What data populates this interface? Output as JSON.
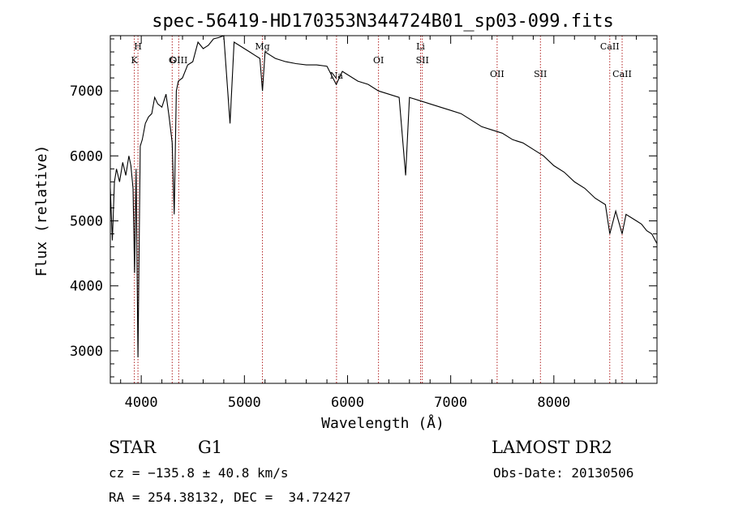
{
  "chart_data": {
    "type": "line",
    "title": "spec-56419-HD170353N344724B01_sp03-099.fits",
    "xlabel": "Wavelength (Å)",
    "ylabel": "Flux (relative)",
    "xlim": [
      3700,
      9000
    ],
    "ylim": [
      2500,
      7850
    ],
    "xticks": [
      4000,
      5000,
      6000,
      7000,
      8000
    ],
    "yticks": [
      3000,
      4000,
      5000,
      6000,
      7000
    ],
    "xtick_labels": [
      "4000",
      "5000",
      "6000",
      "7000",
      "8000"
    ],
    "ytick_labels": [
      "3000",
      "4000",
      "5000",
      "6000",
      "7000"
    ],
    "grid": false,
    "series": [
      {
        "x": [
          3700,
          3720,
          3740,
          3760,
          3790,
          3820,
          3850,
          3880,
          3900,
          3920,
          3935,
          3950,
          3968,
          3990,
          4010,
          4040,
          4070,
          4102,
          4130,
          4160,
          4200,
          4240,
          4270,
          4300,
          4320,
          4340,
          4360,
          4400,
          4450,
          4500,
          4550,
          4600,
          4650,
          4700,
          4750,
          4800,
          4861,
          4900,
          4950,
          5000,
          5050,
          5100,
          5150,
          5175,
          5200,
          5250,
          5300,
          5400,
          5500,
          5600,
          5700,
          5800,
          5890,
          5950,
          6000,
          6100,
          6200,
          6300,
          6400,
          6500,
          6563,
          6600,
          6700,
          6800,
          6900,
          7000,
          7100,
          7200,
          7300,
          7400,
          7500,
          7600,
          7700,
          7800,
          7900,
          8000,
          8100,
          8200,
          8300,
          8400,
          8500,
          8542,
          8600,
          8662,
          8700,
          8750,
          8800,
          8850,
          8900,
          8950,
          9000
        ],
        "y": [
          5500,
          4700,
          5600,
          5800,
          5600,
          5900,
          5700,
          6000,
          5850,
          5500,
          4200,
          5800,
          2900,
          6150,
          6250,
          6500,
          6600,
          6650,
          6900,
          6800,
          6750,
          6950,
          6600,
          6200,
          5100,
          7000,
          7150,
          7200,
          7400,
          7450,
          7750,
          7650,
          7700,
          7800,
          7820,
          7850,
          6500,
          7750,
          7700,
          7650,
          7600,
          7550,
          7500,
          7000,
          7600,
          7550,
          7500,
          7450,
          7420,
          7400,
          7400,
          7380,
          7100,
          7300,
          7250,
          7150,
          7100,
          7000,
          6950,
          6900,
          5700,
          6900,
          6850,
          6800,
          6750,
          6700,
          6650,
          6550,
          6450,
          6400,
          6350,
          6250,
          6200,
          6100,
          6000,
          5850,
          5750,
          5600,
          5500,
          5350,
          5250,
          4800,
          5150,
          4800,
          5100,
          5050,
          5000,
          4950,
          4850,
          4800,
          4650
        ]
      }
    ],
    "lines": [
      {
        "x": 3933,
        "top": "",
        "bottom": "K"
      },
      {
        "x": 3968,
        "top": "H",
        "bottom": ""
      },
      {
        "x": 4300,
        "top": "",
        "bottom": "G"
      },
      {
        "x": 4363,
        "top": "",
        "bottom": "OIII"
      },
      {
        "x": 5175,
        "top": "Mg",
        "bottom": ""
      },
      {
        "x": 5893,
        "top": "",
        "bottom": "Na"
      },
      {
        "x": 6300,
        "top": "",
        "bottom": "OI"
      },
      {
        "x": 6708,
        "top": "Li",
        "bottom": ""
      },
      {
        "x": 6725,
        "top": "",
        "bottom": "SII"
      },
      {
        "x": 7450,
        "top": "",
        "bottom": "OII"
      },
      {
        "x": 7870,
        "top": "",
        "bottom": "SII"
      },
      {
        "x": 8542,
        "top": "CaII",
        "bottom": ""
      },
      {
        "x": 8662,
        "top": "",
        "bottom": "CaII"
      }
    ]
  },
  "footer": {
    "class_label": "STAR",
    "subclass": "G1",
    "survey": "LAMOST DR2",
    "cz": "cz = −135.8 ± 40.8 km/s",
    "obs_date": "Obs-Date: 20130506",
    "radec": "RA = 254.38132, DEC =  34.72427"
  }
}
